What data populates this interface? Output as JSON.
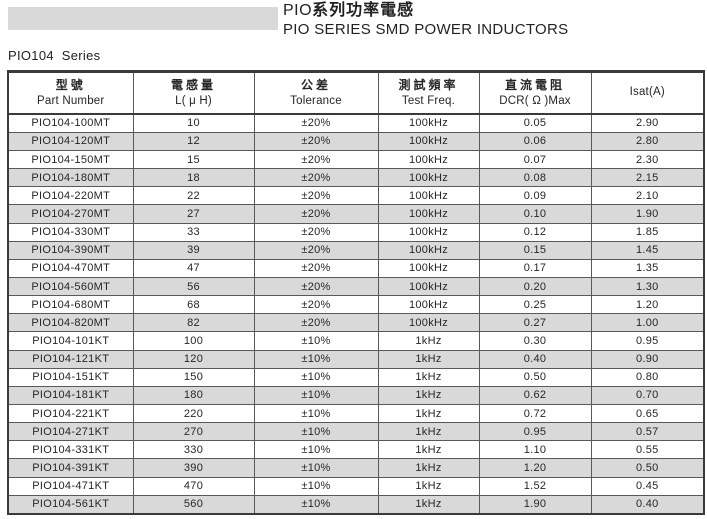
{
  "header": {
    "title_prefix": "PIO",
    "title_zh": "系列功率電感",
    "title_en": "PIO SERIES SMD POWER INDUCTORS",
    "series_label": "PIO104 Series"
  },
  "colors": {
    "stripe": "#d9d9d9",
    "table_border": "#3a3a3a",
    "grid_line": "#595959",
    "text": "#262626"
  },
  "table": {
    "col_keys": [
      "part-number",
      "inductance",
      "tolerance",
      "test-freq",
      "dcr-max",
      "isat"
    ],
    "headers": [
      {
        "zh": "型號",
        "en": "Part Number"
      },
      {
        "zh": "電感量",
        "en": "L( μ H)"
      },
      {
        "zh": "公差",
        "en": "Tolerance"
      },
      {
        "zh": "測試頻率",
        "en": "Test Freq."
      },
      {
        "zh": "直流電阻",
        "en": "DCR( Ω )Max"
      },
      {
        "zh": "",
        "en": "Isat(A)"
      }
    ],
    "rows": [
      [
        "PIO104-100MT",
        "10",
        "±20%",
        "100kHz",
        "0.05",
        "2.90"
      ],
      [
        "PIO104-120MT",
        "12",
        "±20%",
        "100kHz",
        "0.06",
        "2.80"
      ],
      [
        "PIO104-150MT",
        "15",
        "±20%",
        "100kHz",
        "0.07",
        "2.30"
      ],
      [
        "PIO104-180MT",
        "18",
        "±20%",
        "100kHz",
        "0.08",
        "2.15"
      ],
      [
        "PIO104-220MT",
        "22",
        "±20%",
        "100kHz",
        "0.09",
        "2.10"
      ],
      [
        "PIO104-270MT",
        "27",
        "±20%",
        "100kHz",
        "0.10",
        "1.90"
      ],
      [
        "PIO104-330MT",
        "33",
        "±20%",
        "100kHz",
        "0.12",
        "1.85"
      ],
      [
        "PIO104-390MT",
        "39",
        "±20%",
        "100kHz",
        "0.15",
        "1.45"
      ],
      [
        "PIO104-470MT",
        "47",
        "±20%",
        "100kHz",
        "0.17",
        "1.35"
      ],
      [
        "PIO104-560MT",
        "56",
        "±20%",
        "100kHz",
        "0.20",
        "1.30"
      ],
      [
        "PIO104-680MT",
        "68",
        "±20%",
        "100kHz",
        "0.25",
        "1.20"
      ],
      [
        "PIO104-820MT",
        "82",
        "±20%",
        "100kHz",
        "0.27",
        "1.00"
      ],
      [
        "PIO104-101KT",
        "100",
        "±10%",
        "1kHz",
        "0.30",
        "0.95"
      ],
      [
        "PIO104-121KT",
        "120",
        "±10%",
        "1kHz",
        "0.40",
        "0.90"
      ],
      [
        "PIO104-151KT",
        "150",
        "±10%",
        "1kHz",
        "0.50",
        "0.80"
      ],
      [
        "PIO104-181KT",
        "180",
        "±10%",
        "1kHz",
        "0.62",
        "0.70"
      ],
      [
        "PIO104-221KT",
        "220",
        "±10%",
        "1kHz",
        "0.72",
        "0.65"
      ],
      [
        "PIO104-271KT",
        "270",
        "±10%",
        "1kHz",
        "0.95",
        "0.57"
      ],
      [
        "PIO104-331KT",
        "330",
        "±10%",
        "1kHz",
        "1.10",
        "0.55"
      ],
      [
        "PIO104-391KT",
        "390",
        "±10%",
        "1kHz",
        "1.20",
        "0.50"
      ],
      [
        "PIO104-471KT",
        "470",
        "±10%",
        "1kHz",
        "1.52",
        "0.45"
      ],
      [
        "PIO104-561KT",
        "560",
        "±10%",
        "1kHz",
        "1.90",
        "0.40"
      ]
    ]
  }
}
